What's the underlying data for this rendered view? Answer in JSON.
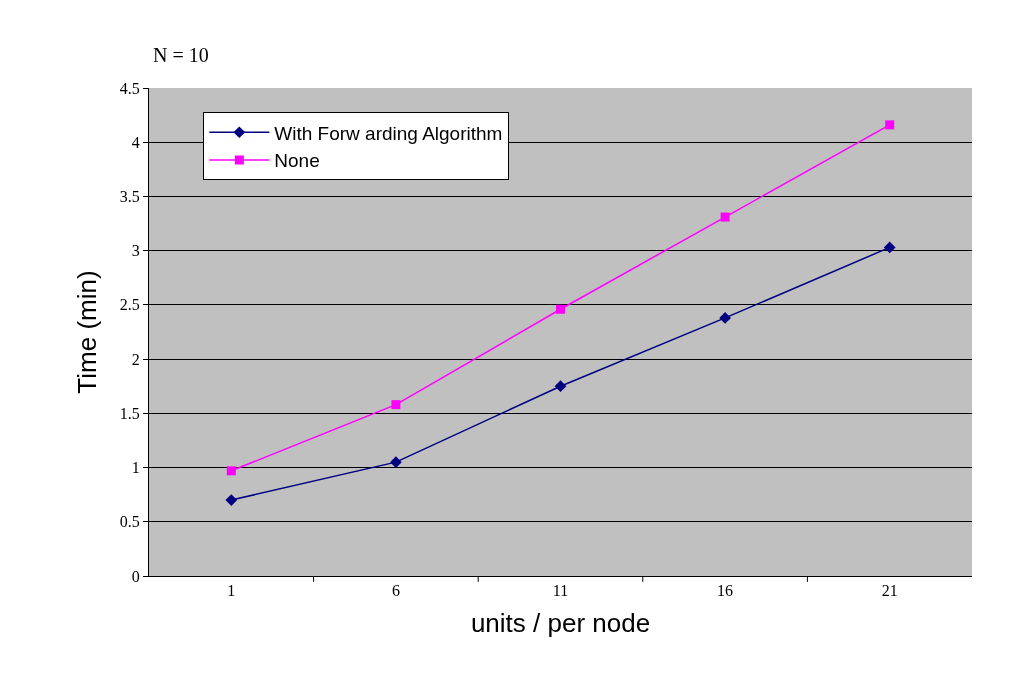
{
  "chart_data": {
    "type": "line",
    "xlabel": "units / per node",
    "ylabel": "Time (min)",
    "annotations": [
      "N = 10"
    ],
    "categories": [
      "1",
      "6",
      "11",
      "16",
      "21"
    ],
    "series": [
      {
        "name": "With Forw arding Algorithm",
        "color": "#000080",
        "marker": "diamond",
        "values": [
          0.7,
          1.05,
          1.75,
          2.38,
          3.03
        ]
      },
      {
        "name": "None",
        "color": "#ff00ff",
        "marker": "square",
        "values": [
          0.97,
          1.58,
          2.46,
          3.31,
          4.16
        ]
      }
    ],
    "ylim": [
      0,
      4.5
    ],
    "yticks": [
      0,
      0.5,
      1,
      1.5,
      2,
      2.5,
      3,
      3.5,
      4,
      4.5
    ],
    "grid": "y",
    "legend": "top left",
    "line_style": "solid"
  }
}
